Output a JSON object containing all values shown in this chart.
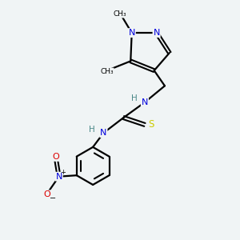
{
  "background_color": "#f0f4f5",
  "colors": {
    "C": "#000000",
    "N": "#2222cc",
    "N_blue": "#0000dd",
    "H": "#4a8888",
    "S": "#cccc00",
    "O": "#dd0000",
    "bond": "#000000"
  },
  "figsize": [
    3.0,
    3.0
  ],
  "dpi": 100
}
